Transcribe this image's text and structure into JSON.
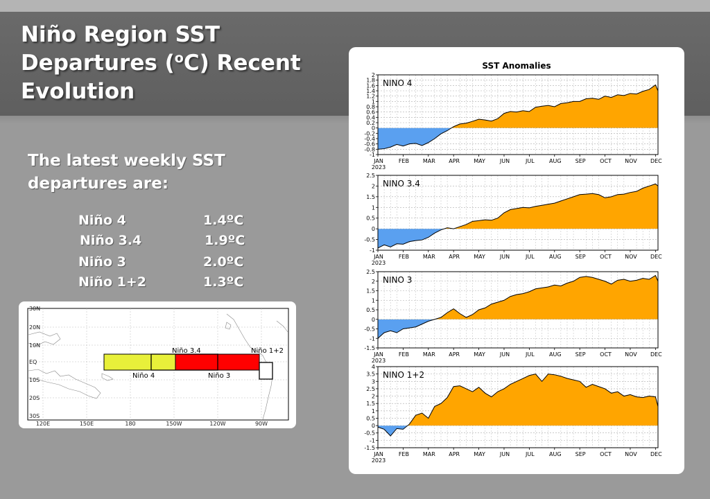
{
  "slide": {
    "title_main": "Niño Region SST Departures (",
    "title_sup": "o",
    "title_tail": "C) Recent Evolution",
    "intro": "The latest weekly SST departures are:",
    "values": [
      {
        "name": "Niño 4",
        "value": "1.4ºC"
      },
      {
        "name": "Niño 3.4",
        "value": "1.9ºC"
      },
      {
        "name": "Niño 3",
        "value": "2.0ºC"
      },
      {
        "name": "Niño 1+2",
        "value": "1.3ºC"
      }
    ]
  },
  "map": {
    "lat_labels": [
      "30N",
      "20N",
      "10N",
      "EQ",
      "10S",
      "20S",
      "30S"
    ],
    "lon_labels": [
      "120E",
      "150E",
      "180",
      "150W",
      "120W",
      "90W"
    ],
    "regions": [
      {
        "label": "Niño 4"
      },
      {
        "label": "Niño 3.4"
      },
      {
        "label": "Niño 3"
      },
      {
        "label": "Niño 1+2"
      }
    ]
  },
  "colors": {
    "positive": "#FFA500",
    "negative": "#5AA0F0",
    "nino4_box": "#E8F03A",
    "nino3_box": "#FF0000"
  },
  "chart_data": {
    "type": "area",
    "title": "SST Anomalies",
    "months": [
      "JAN",
      "FEB",
      "MAR",
      "APR",
      "MAY",
      "JUN",
      "JUL",
      "AUG",
      "SEP",
      "OCT",
      "NOV",
      "DEC"
    ],
    "year": "2023",
    "panels": [
      {
        "name": "NINO 4",
        "ylim": [
          -1,
          2
        ],
        "yticks": [
          -1,
          -0.8,
          -0.6,
          -0.4,
          -0.2,
          0,
          0.2,
          0.4,
          0.6,
          0.8,
          1,
          1.2,
          1.4,
          1.6,
          1.8,
          2
        ],
        "x": [
          0,
          0.25,
          0.5,
          0.75,
          1,
          1.25,
          1.5,
          1.75,
          2,
          2.25,
          2.5,
          2.75,
          3,
          3.25,
          3.5,
          3.75,
          4,
          4.25,
          4.5,
          4.75,
          5,
          5.25,
          5.5,
          5.75,
          6,
          6.25,
          6.5,
          6.75,
          7,
          7.25,
          7.5,
          7.75,
          8,
          8.25,
          8.5,
          8.75,
          9,
          9.25,
          9.5,
          9.75,
          10,
          10.25,
          10.5,
          10.75,
          11,
          11.1
        ],
        "values": [
          -0.8,
          -0.78,
          -0.72,
          -0.62,
          -0.68,
          -0.6,
          -0.58,
          -0.66,
          -0.55,
          -0.4,
          -0.22,
          -0.1,
          0.05,
          0.15,
          0.18,
          0.25,
          0.33,
          0.3,
          0.26,
          0.35,
          0.55,
          0.62,
          0.6,
          0.65,
          0.62,
          0.78,
          0.82,
          0.85,
          0.8,
          0.92,
          0.95,
          1.0,
          1.0,
          1.1,
          1.12,
          1.08,
          1.2,
          1.15,
          1.25,
          1.22,
          1.3,
          1.28,
          1.38,
          1.45,
          1.62,
          1.4
        ]
      },
      {
        "name": "NINO 3.4",
        "ylim": [
          -1,
          2.5
        ],
        "yticks": [
          -1,
          -0.5,
          0,
          0.5,
          1,
          1.5,
          2,
          2.5
        ],
        "x": [
          0,
          0.25,
          0.5,
          0.75,
          1,
          1.25,
          1.5,
          1.75,
          2,
          2.25,
          2.5,
          2.75,
          3,
          3.25,
          3.5,
          3.75,
          4,
          4.25,
          4.5,
          4.75,
          5,
          5.25,
          5.5,
          5.75,
          6,
          6.25,
          6.5,
          6.75,
          7,
          7.25,
          7.5,
          7.75,
          8,
          8.25,
          8.5,
          8.75,
          9,
          9.25,
          9.5,
          9.75,
          10,
          10.25,
          10.5,
          10.75,
          11,
          11.1
        ],
        "values": [
          -0.9,
          -0.75,
          -0.85,
          -0.7,
          -0.72,
          -0.6,
          -0.55,
          -0.52,
          -0.4,
          -0.2,
          -0.05,
          0.05,
          0.0,
          0.1,
          0.2,
          0.35,
          0.38,
          0.42,
          0.4,
          0.5,
          0.75,
          0.9,
          0.95,
          1.0,
          0.98,
          1.05,
          1.1,
          1.15,
          1.2,
          1.3,
          1.4,
          1.5,
          1.6,
          1.62,
          1.65,
          1.6,
          1.45,
          1.5,
          1.6,
          1.62,
          1.7,
          1.75,
          1.9,
          2.0,
          2.1,
          2.0
        ]
      },
      {
        "name": "NINO 3",
        "ylim": [
          -1.5,
          2.5
        ],
        "yticks": [
          -1.5,
          -1,
          -0.5,
          0,
          0.5,
          1,
          1.5,
          2,
          2.5
        ],
        "x": [
          0,
          0.25,
          0.5,
          0.75,
          1,
          1.25,
          1.5,
          1.75,
          2,
          2.25,
          2.5,
          2.75,
          3,
          3.25,
          3.5,
          3.75,
          4,
          4.25,
          4.5,
          4.75,
          5,
          5.25,
          5.5,
          5.75,
          6,
          6.25,
          6.5,
          6.75,
          7,
          7.25,
          7.5,
          7.75,
          8,
          8.25,
          8.5,
          8.75,
          9,
          9.25,
          9.5,
          9.75,
          10,
          10.25,
          10.5,
          10.75,
          11,
          11.1
        ],
        "values": [
          -1.0,
          -0.7,
          -0.6,
          -0.7,
          -0.5,
          -0.45,
          -0.4,
          -0.25,
          -0.1,
          0.0,
          0.1,
          0.35,
          0.55,
          0.3,
          0.1,
          0.25,
          0.5,
          0.6,
          0.8,
          0.9,
          1.0,
          1.2,
          1.3,
          1.35,
          1.45,
          1.6,
          1.65,
          1.7,
          1.8,
          1.75,
          1.9,
          2.0,
          2.2,
          2.25,
          2.2,
          2.1,
          2.0,
          1.85,
          2.05,
          2.1,
          2.0,
          2.05,
          2.15,
          2.1,
          2.3,
          2.0
        ]
      },
      {
        "name": "NINO 1+2",
        "ylim": [
          -1.5,
          4
        ],
        "yticks": [
          -1.5,
          -1,
          -0.5,
          0,
          0.5,
          1,
          1.5,
          2,
          2.5,
          3,
          3.5,
          4
        ],
        "x": [
          0,
          0.25,
          0.5,
          0.75,
          1,
          1.25,
          1.5,
          1.75,
          2,
          2.25,
          2.5,
          2.75,
          3,
          3.25,
          3.5,
          3.75,
          4,
          4.25,
          4.5,
          4.75,
          5,
          5.25,
          5.5,
          5.75,
          6,
          6.25,
          6.5,
          6.75,
          7,
          7.25,
          7.5,
          7.75,
          8,
          8.25,
          8.5,
          8.75,
          9,
          9.25,
          9.5,
          9.75,
          10,
          10.25,
          10.5,
          10.75,
          11,
          11.1
        ],
        "values": [
          -0.1,
          -0.25,
          -0.7,
          -0.2,
          -0.25,
          0.1,
          0.7,
          0.85,
          0.5,
          1.3,
          1.5,
          1.9,
          2.65,
          2.7,
          2.5,
          2.3,
          2.6,
          2.2,
          1.95,
          2.3,
          2.5,
          2.8,
          3.0,
          3.2,
          3.4,
          3.5,
          3.0,
          3.5,
          3.45,
          3.35,
          3.2,
          3.1,
          3.0,
          2.6,
          2.8,
          2.65,
          2.5,
          2.2,
          2.3,
          2.0,
          2.1,
          1.95,
          1.9,
          2.0,
          1.95,
          1.3
        ]
      }
    ]
  }
}
